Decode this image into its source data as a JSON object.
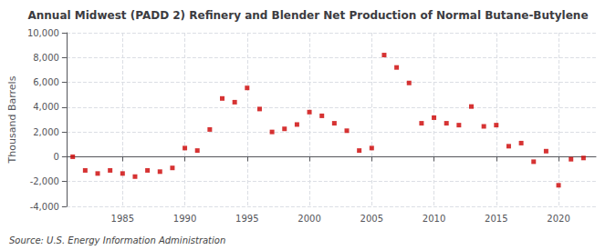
{
  "chart_data": {
    "type": "scatter",
    "title": "Annual Midwest (PADD 2) Refinery and Blender Net Production of Normal Butane-Butylene",
    "ylabel": "Thousand Barrels",
    "source": "Source: U.S. Energy Information Administration",
    "color": "#cc0000",
    "marker": "square",
    "x": [
      1981,
      1982,
      1983,
      1984,
      1985,
      1986,
      1987,
      1988,
      1989,
      1990,
      1991,
      1992,
      1993,
      1994,
      1995,
      1996,
      1997,
      1998,
      1999,
      2000,
      2001,
      2002,
      2003,
      2004,
      2005,
      2006,
      2007,
      2008,
      2009,
      2010,
      2011,
      2012,
      2013,
      2014,
      2015,
      2016,
      2017,
      2018,
      2019,
      2020,
      2021,
      2022
    ],
    "values": [
      0,
      -1100,
      -1350,
      -1100,
      -1350,
      -1600,
      -1100,
      -1200,
      -900,
      700,
      500,
      2200,
      4700,
      4400,
      5550,
      3850,
      2000,
      2250,
      2600,
      3600,
      3300,
      2700,
      2100,
      500,
      700,
      8200,
      7200,
      5950,
      2700,
      3150,
      2700,
      2550,
      4050,
      2450,
      2550,
      850,
      1100,
      -400,
      450,
      -2300,
      -200,
      -100
    ],
    "xlim": [
      1980.5,
      2023
    ],
    "ylim": [
      -4000,
      10000
    ],
    "xticks": [
      1985,
      1990,
      1995,
      2000,
      2005,
      2010,
      2015,
      2020
    ],
    "yticks": [
      {
        "value": -4000,
        "label": "-4,000"
      },
      {
        "value": -2000,
        "label": "-2,000"
      },
      0,
      {
        "value": 2000,
        "label": "2,000"
      },
      {
        "value": 4000,
        "label": "4,000"
      },
      {
        "value": 6000,
        "label": "6,000"
      },
      {
        "value": 8000,
        "label": "8,000"
      },
      {
        "value": 10000,
        "label": "10,000"
      }
    ],
    "grid": true
  }
}
